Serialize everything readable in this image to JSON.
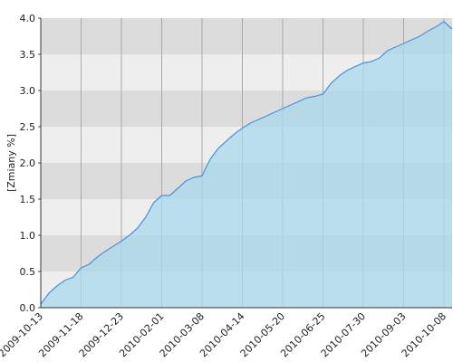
{
  "chart_data": {
    "type": "area",
    "y_label": "[Zmiany %]",
    "categories": [
      "2009-10-13",
      null,
      null,
      null,
      null,
      "2009-11-18",
      null,
      null,
      null,
      null,
      "2009-12-23",
      null,
      null,
      null,
      null,
      "2010-02-01",
      null,
      null,
      null,
      null,
      "2010-03-08",
      null,
      null,
      null,
      null,
      "2010-04-14",
      null,
      null,
      null,
      null,
      "2010-05-20",
      null,
      null,
      null,
      null,
      "2010-06-25",
      null,
      null,
      null,
      null,
      "2010-07-30",
      null,
      null,
      null,
      null,
      "2010-09-03",
      null,
      null,
      null,
      null,
      "2010-10-08",
      null
    ],
    "values": [
      0.05,
      0.2,
      0.3,
      0.38,
      0.42,
      0.55,
      0.6,
      0.7,
      0.78,
      0.85,
      0.92,
      1.0,
      1.1,
      1.25,
      1.45,
      1.55,
      1.55,
      1.65,
      1.75,
      1.8,
      1.82,
      2.05,
      2.2,
      2.3,
      2.4,
      2.48,
      2.55,
      2.6,
      2.65,
      2.7,
      2.75,
      2.8,
      2.85,
      2.9,
      2.92,
      2.95,
      3.1,
      3.2,
      3.28,
      3.33,
      3.38,
      3.4,
      3.45,
      3.55,
      3.6,
      3.65,
      3.7,
      3.75,
      3.82,
      3.88,
      3.95,
      3.85
    ],
    "line_color": "#4a90d9",
    "fill_color": "#a8d8ea",
    "band_colors": [
      "#eeeeee",
      "#dcdcdc"
    ],
    "ylim": [
      0,
      4
    ],
    "yticks": [
      {
        "value": 0,
        "label": "0.0"
      },
      0.5,
      {
        "value": 1,
        "label": "1.0"
      },
      1.5,
      {
        "value": 2,
        "label": "2.0"
      },
      2.5,
      {
        "value": 3,
        "label": "3.0"
      },
      3.5,
      {
        "value": 4,
        "label": "4.0"
      }
    ],
    "grid": true
  }
}
